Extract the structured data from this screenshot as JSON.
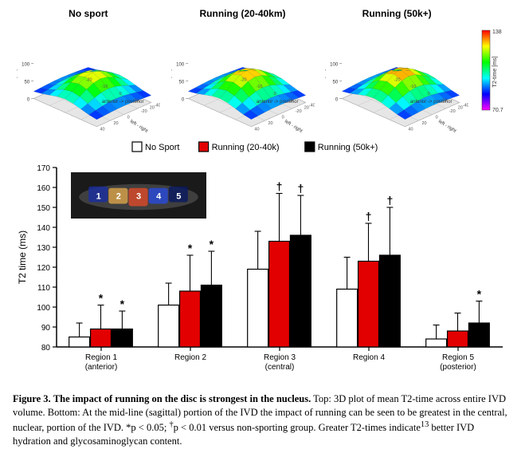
{
  "top": {
    "panels": [
      {
        "title": "No sport"
      },
      {
        "title": "Running (20-40km)"
      },
      {
        "title": "Running (50k+)"
      }
    ],
    "axis_z_label": "T2-time [ms]",
    "axis_z_ticks": [
      0,
      50,
      100
    ],
    "axis_x_label": "anterior -> posterior",
    "axis_x_ticks": [
      -20,
      -10,
      0,
      10,
      20
    ],
    "axis_y_label": "left - right",
    "axis_y_ticks": [
      -40,
      -20,
      0,
      20,
      40
    ],
    "jet_stops": [
      "#ff00ff",
      "#7f00ff",
      "#0000ff",
      "#007fff",
      "#00ffff",
      "#00ff7f",
      "#00ff00",
      "#7fff00",
      "#ffff00",
      "#ff7f00",
      "#ff0000"
    ],
    "colorbar": {
      "min": 70.7,
      "max": 138,
      "unit": "[ms]",
      "label": "T2-time"
    }
  },
  "legend": {
    "items": [
      {
        "label": "No Sport",
        "fill": "#ffffff",
        "stroke": "#000000"
      },
      {
        "label": "Running (20-40k)",
        "fill": "#e30000",
        "stroke": "#000000"
      },
      {
        "label": "Running (50k+)",
        "fill": "#000000",
        "stroke": "#000000"
      }
    ]
  },
  "barchart": {
    "ylabel": "T2 time (ms)",
    "ylim": [
      80,
      170
    ],
    "ytick_step": 10,
    "categories": [
      "Region 1 (anterior)",
      "Region 2",
      "Region 3 (central)",
      "Region 4",
      "Region 5 (posterior)"
    ],
    "series": [
      {
        "key": "no_sport",
        "values": [
          85,
          101,
          119,
          109,
          84
        ],
        "err": [
          7,
          11,
          19,
          16,
          7
        ],
        "fill": "#ffffff",
        "stroke": "#000000"
      },
      {
        "key": "run2040",
        "values": [
          89,
          108,
          133,
          123,
          88
        ],
        "err": [
          12,
          18,
          24,
          19,
          9
        ],
        "fill": "#e30000",
        "stroke": "#000000"
      },
      {
        "key": "run50",
        "values": [
          89,
          111,
          136,
          126,
          92
        ],
        "err": [
          9,
          17,
          20,
          24,
          11
        ],
        "fill": "#000000",
        "stroke": "#000000"
      }
    ],
    "sig": [
      [
        "",
        "*",
        "*"
      ],
      [
        "",
        "*",
        "*"
      ],
      [
        "",
        "†",
        "†"
      ],
      [
        "",
        "†",
        "†"
      ],
      [
        "",
        "",
        "*"
      ]
    ],
    "inset_regions": [
      {
        "n": "1",
        "fill": "#1b2ea0"
      },
      {
        "n": "2",
        "fill": "#d9a24a"
      },
      {
        "n": "3",
        "fill": "#d94a2a"
      },
      {
        "n": "4",
        "fill": "#2a4ad9"
      },
      {
        "n": "5",
        "fill": "#0a1a60"
      }
    ],
    "label_fontsize": 11,
    "tick_fontsize": 10,
    "sig_fontsize": 14,
    "bar_rel_width": 0.72,
    "grid_color": "#000000"
  },
  "caption": {
    "label": "Figure 3.",
    "title": "The impact of running on the disc is strongest in the nucleus.",
    "body_a": " Top: 3D plot of mean T2-time across entire IVD volume. Bottom: At the mid-line (sagittal) portion of the IVD the impact of running can be seen to be greatest in the central, nuclear, portion of the IVD. *p < 0.05; ",
    "body_b": "p < 0.01 versus non-sporting group. Greater T2-times indicate",
    "body_c": " better IVD hydration and glycosaminoglycan content.",
    "dagger": "†",
    "sup": "13"
  }
}
